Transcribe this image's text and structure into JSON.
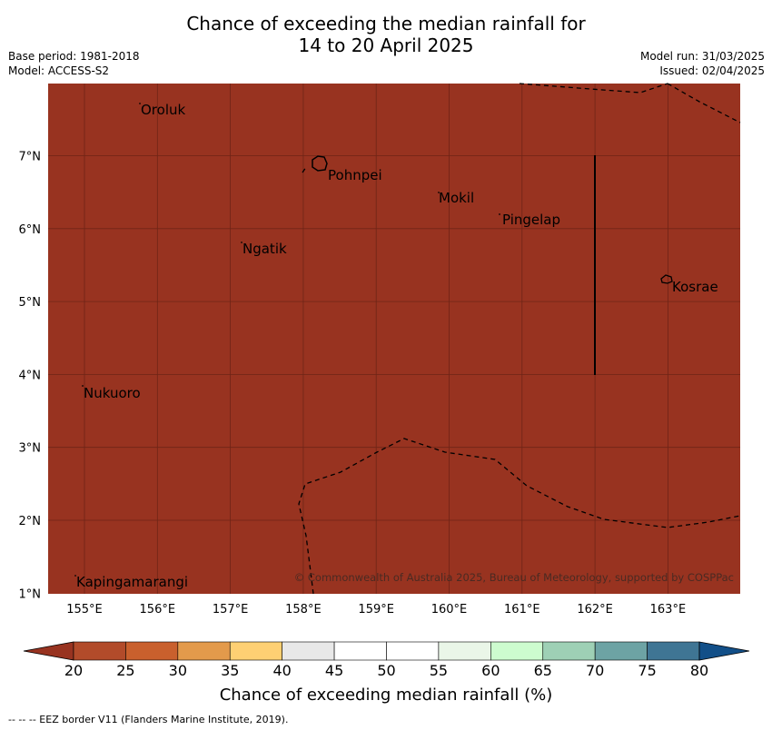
{
  "title_line1": "Chance of exceeding the median rainfall for",
  "title_line2": "14 to 20 April 2025",
  "meta_left": {
    "base_period": "Base period: 1981-2018",
    "model": "Model: ACCESS-S2"
  },
  "meta_right": {
    "model_run": "Model run: 31/03/2025",
    "issued": "Issued: 02/04/2025"
  },
  "map": {
    "fill_color": "#983320",
    "lon_ticks": [
      "155°E",
      "156°E",
      "157°E",
      "158°E",
      "159°E",
      "160°E",
      "161°E",
      "162°E",
      "163°E"
    ],
    "lat_ticks": [
      "7°N",
      "6°N",
      "5°N",
      "4°N",
      "3°N",
      "2°N",
      "1°N"
    ],
    "places": [
      {
        "name": "Oroluk"
      },
      {
        "name": "Pohnpei"
      },
      {
        "name": "Mokil"
      },
      {
        "name": "Pingelap"
      },
      {
        "name": "Ngatik"
      },
      {
        "name": "Kosrae"
      },
      {
        "name": "Nukuoro"
      },
      {
        "name": "Kapingamarangi"
      }
    ],
    "copyright": "© Commonwealth of Australia 2025, Bureau of Meteorology, supported by COSPPac"
  },
  "colorbar": {
    "colors": [
      "#b24b2a",
      "#c9602d",
      "#e39a4b",
      "#fed073",
      "#e8e8e8",
      "#ffffff",
      "#ffffff",
      "#eaf6e8",
      "#cdfccf",
      "#9ed0b5",
      "#6da3a4",
      "#3f7594"
    ],
    "under_color": "#983320",
    "over_color": "#124f88",
    "labels": [
      "20",
      "25",
      "30",
      "35",
      "40",
      "45",
      "50",
      "55",
      "60",
      "65",
      "70",
      "75",
      "80"
    ],
    "title": "Chance of exceeding median rainfall (%)"
  },
  "footer": "--  --  -- EEZ border V11 (Flanders Marine Institute, 2019)."
}
